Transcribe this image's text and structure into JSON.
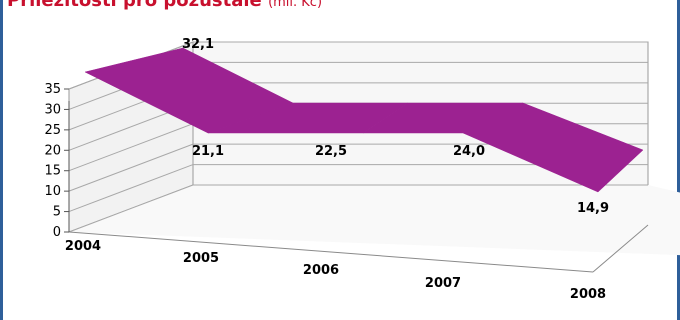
{
  "title": {
    "main": "Příležitosti pro pozůstalé",
    "unit": "(mil. Kč)"
  },
  "colors": {
    "accent": "#9c2291",
    "frame": "#2f5f9a",
    "title": "#c8102e"
  },
  "chart_data": {
    "type": "area",
    "view": "3d",
    "categories": [
      "2004",
      "2005",
      "2006",
      "2007",
      "2008"
    ],
    "values": [
      32.1,
      21.1,
      22.5,
      24.0,
      14.9
    ],
    "value_labels": [
      "32,1",
      "21,1",
      "22,5",
      "24,0",
      "14,9"
    ],
    "y_ticks": [
      "0",
      "5",
      "10",
      "15",
      "20",
      "25",
      "30",
      "35"
    ],
    "ylim": [
      0,
      35
    ],
    "grid": true,
    "legend": "none"
  }
}
